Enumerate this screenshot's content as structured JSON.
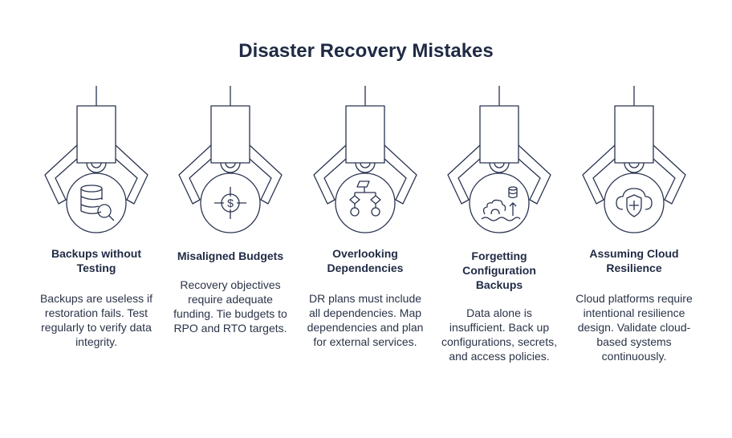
{
  "title": "Disaster Recovery Mistakes",
  "colors": {
    "ink": "#2a3450",
    "text": "#1f2a44"
  },
  "items": [
    {
      "icon": "database-search-icon",
      "heading": "Backups without Testing",
      "body": "Backups are useless if restoration fails. Test regularly to verify data integrity."
    },
    {
      "icon": "dollar-target-icon",
      "heading": "Misaligned Budgets",
      "body": "Recovery objectives require adequate funding. Tie budgets to RPO and RTO targets."
    },
    {
      "icon": "flowchart-icon",
      "heading": "Overlooking Dependencies",
      "body": "DR plans must include all dependencies. Map dependencies and plan for external services."
    },
    {
      "icon": "gear-database-upload-icon",
      "heading": "Forgetting Configuration Backups",
      "body": "Data alone is insufficient. Back up configurations, secrets, and access policies."
    },
    {
      "icon": "cloud-shield-icon",
      "heading": "Assuming Cloud Resilience",
      "body": "Cloud platforms require intentional resilience design. Validate cloud-based systems continuously."
    }
  ]
}
